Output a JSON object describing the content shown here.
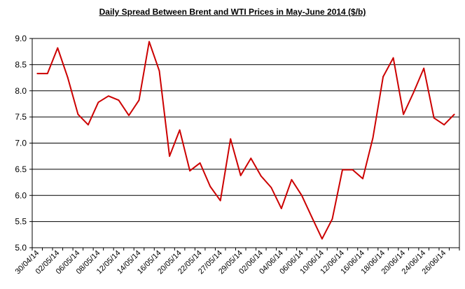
{
  "chart_data": {
    "type": "line",
    "title": "Daily Spread Between Brent and WTI Prices in May-June 2014 ($/b)",
    "xlabel": "",
    "ylabel": "",
    "ylim": [
      5.0,
      9.0
    ],
    "yticks": [
      "5.0",
      "5.5",
      "6.0",
      "6.5",
      "7.0",
      "7.5",
      "8.0",
      "8.5",
      "9.0"
    ],
    "grid": true,
    "line_color": "#cc0000",
    "x": [
      "30/04/14",
      "01/05/14",
      "02/05/14",
      "05/05/14",
      "06/05/14",
      "07/05/14",
      "08/05/14",
      "09/05/14",
      "12/05/14",
      "13/05/14",
      "14/05/14",
      "15/05/14",
      "16/05/14",
      "19/05/14",
      "20/05/14",
      "21/05/14",
      "22/05/14",
      "23/05/14",
      "27/05/14",
      "28/05/14",
      "29/05/14",
      "30/05/14",
      "02/06/14",
      "03/06/14",
      "04/06/14",
      "05/06/14",
      "06/06/14",
      "09/06/14",
      "10/06/14",
      "11/06/14",
      "12/06/14",
      "13/06/14",
      "16/06/14",
      "17/06/14",
      "18/06/14",
      "19/06/14",
      "20/06/14",
      "23/06/14",
      "24/06/14",
      "25/06/14",
      "26/06/14",
      "27/06/14"
    ],
    "xtick_labels": [
      "30/04/14",
      "02/05/14",
      "06/05/14",
      "08/05/14",
      "12/05/14",
      "14/05/14",
      "16/05/14",
      "20/05/14",
      "22/05/14",
      "27/05/14",
      "29/05/14",
      "02/06/14",
      "04/06/14",
      "06/06/14",
      "10/06/14",
      "12/06/14",
      "16/06/14",
      "18/06/14",
      "20/06/14",
      "24/06/14",
      "26/06/14"
    ],
    "series": [
      {
        "values": [
          8.33,
          8.33,
          8.82,
          8.25,
          7.55,
          7.35,
          7.78,
          7.9,
          7.82,
          7.53,
          7.82,
          8.94,
          8.38,
          6.75,
          7.25,
          6.47,
          6.62,
          6.17,
          5.9,
          7.08,
          6.38,
          6.71,
          6.37,
          6.15,
          5.75,
          6.3,
          6.0,
          5.58,
          5.17,
          5.55,
          6.49,
          6.49,
          6.32,
          7.1,
          8.27,
          8.63,
          7.55,
          7.97,
          8.43,
          7.48,
          7.35,
          7.55
        ]
      }
    ]
  }
}
